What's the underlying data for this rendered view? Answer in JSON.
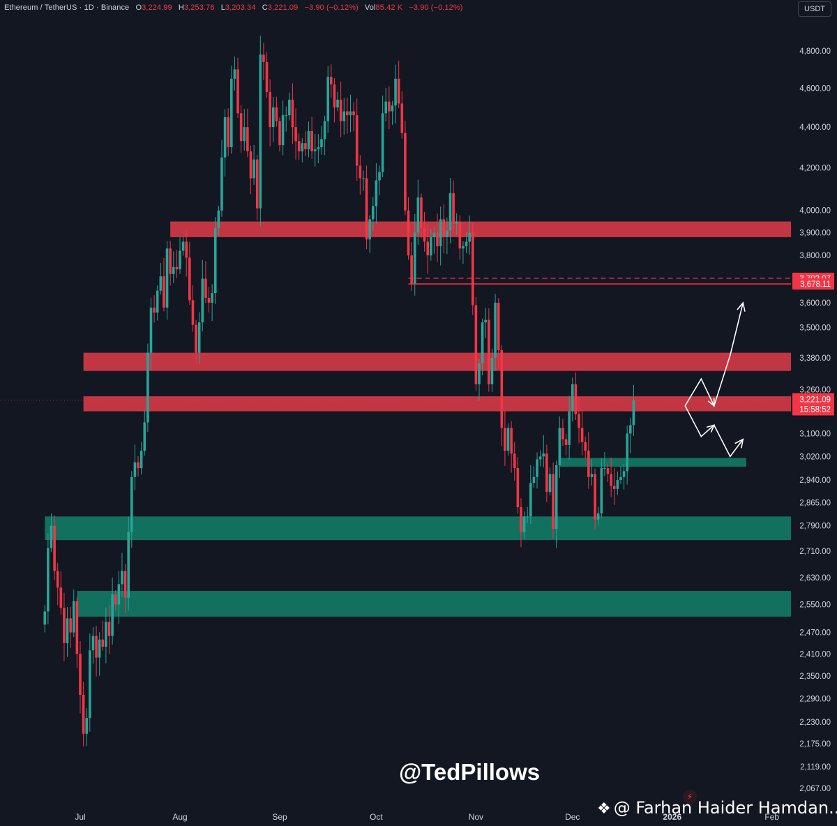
{
  "header": {
    "symbol": "Ethereum / TetherUS · 1D · Binance",
    "open_label": "O",
    "open": "3,224.99",
    "high_label": "H",
    "high": "3,253.76",
    "low_label": "L",
    "low": "3,203.34",
    "close_label": "C",
    "close": "3,221.09",
    "change": "−3.90 (−0.12%)",
    "vol_label": "Vol",
    "volume": "85.42 K",
    "vol_change": "−3.90 (−0.12%)"
  },
  "currency": "USDT",
  "watermark": "@TedPillows",
  "credit": "@ Farhan Haider Hamdan...",
  "credit_icon": "binance-logo-icon",
  "colors": {
    "background": "#131722",
    "up": "#26a69a",
    "down": "#f23645",
    "resistance_zone": "#c23643",
    "support_zone": "#12705f",
    "axis_text": "#d1d4dc"
  },
  "chart_data": {
    "type": "candlestick",
    "title": "Ethereum / TetherUS · 1D · Binance",
    "x_tick_labels": [
      "Jul",
      "Aug",
      "Sep",
      "Oct",
      "Nov",
      "Dec",
      "2026",
      "Feb"
    ],
    "y_tick_labels": [
      4800,
      4600,
      4400,
      4200,
      4000,
      3900,
      3800,
      3600,
      3500,
      3380,
      3260,
      3100,
      3020,
      2940,
      2865,
      2790,
      2710,
      2630,
      2550,
      2470,
      2410,
      2350,
      2290,
      2230,
      2175,
      2119,
      2067
    ],
    "y_scale": "log",
    "ylim": [
      2050,
      5050
    ],
    "last_price": 3221.09,
    "last_price_label": "3,221.09",
    "countdown": "15:58:52",
    "price_badges": [
      {
        "label": "3,702.07",
        "value": 3702.07
      },
      {
        "label": "3,678.11",
        "value": 3678.11
      }
    ],
    "horizontal_lines": [
      {
        "value": 3702.07,
        "style": "dashed",
        "from": "2025-10-11"
      },
      {
        "value": 3678.11,
        "style": "solid",
        "from": "2025-10-11"
      }
    ],
    "zones": [
      {
        "kind": "resistance",
        "low": 3880,
        "high": 3950,
        "from": "2025-07-29"
      },
      {
        "kind": "resistance",
        "low": 3330,
        "high": 3400,
        "from": "2025-07-02"
      },
      {
        "kind": "resistance",
        "low": 3180,
        "high": 3235,
        "from": "2025-07-02"
      },
      {
        "kind": "support",
        "low": 2985,
        "high": 3015,
        "from": "2025-11-27",
        "to": "2026-01-24"
      },
      {
        "kind": "support",
        "low": 2745,
        "high": 2820,
        "from": "2025-06-20"
      },
      {
        "kind": "support",
        "low": 2515,
        "high": 2590,
        "from": "2025-06-30"
      }
    ],
    "scenario_up": [
      [
        "2026-01-05",
        3200
      ],
      [
        "2026-01-10",
        3300
      ],
      [
        "2026-01-14",
        3200
      ],
      [
        "2026-01-19",
        3390
      ],
      [
        "2026-01-23",
        3600
      ]
    ],
    "scenario_down": [
      [
        "2026-01-05",
        3200
      ],
      [
        "2026-01-10",
        3090
      ],
      [
        "2026-01-14",
        3130
      ],
      [
        "2026-01-19",
        3020
      ],
      [
        "2026-01-23",
        3080
      ]
    ],
    "candles_start": "2025-06-20",
    "closes": [
      2530,
      2720,
      2790,
      2650,
      2600,
      2540,
      2440,
      2510,
      2470,
      2560,
      2410,
      2300,
      2200,
      2240,
      2420,
      2460,
      2400,
      2450,
      2430,
      2500,
      2460,
      2580,
      2550,
      2610,
      2650,
      2570,
      2770,
      2950,
      3000,
      2980,
      3040,
      3140,
      3400,
      3580,
      3560,
      3650,
      3710,
      3580,
      3830,
      3720,
      3750,
      3740,
      3820,
      3860,
      3790,
      3610,
      3510,
      3400,
      3520,
      3700,
      3620,
      3600,
      3640,
      3920,
      4000,
      4250,
      4450,
      4300,
      4650,
      4700,
      4470,
      4330,
      4400,
      4280,
      4150,
      4240,
      4010,
      4780,
      4740,
      4580,
      4400,
      4500,
      4430,
      4310,
      4460,
      4460,
      4540,
      4400,
      4330,
      4280,
      4320,
      4290,
      4380,
      4280,
      4290,
      4300,
      4340,
      4430,
      4660,
      4620,
      4500,
      4540,
      4430,
      4480,
      4460,
      4480,
      4460,
      4210,
      4150,
      4150,
      3870,
      3960,
      4020,
      4140,
      4180,
      4470,
      4530,
      4480,
      4510,
      4650,
      4520,
      4370,
      4000,
      3800,
      3680,
      3900,
      4060,
      3920,
      3860,
      3800,
      3880,
      3900,
      3840,
      3960,
      3880,
      3910,
      4080,
      3940,
      3950,
      3830,
      3840,
      3860,
      3900,
      3590,
      3280,
      3360,
      3520,
      3530,
      3280,
      3380,
      3600,
      3410,
      3120,
      3040,
      3120,
      3030,
      2980,
      2850,
      2770,
      2820,
      2820,
      2930,
      2950,
      3010,
      3020,
      3030,
      2900,
      2960,
      2780,
      2990,
      3120,
      3080,
      3060,
      3180,
      3280,
      3170,
      3120,
      3070,
      3040,
      2950,
      2960,
      2810,
      2830,
      2980,
      2980,
      2960,
      2920,
      2910,
      2940,
      2950,
      2970,
      3100,
      3130,
      3221.09
    ]
  }
}
